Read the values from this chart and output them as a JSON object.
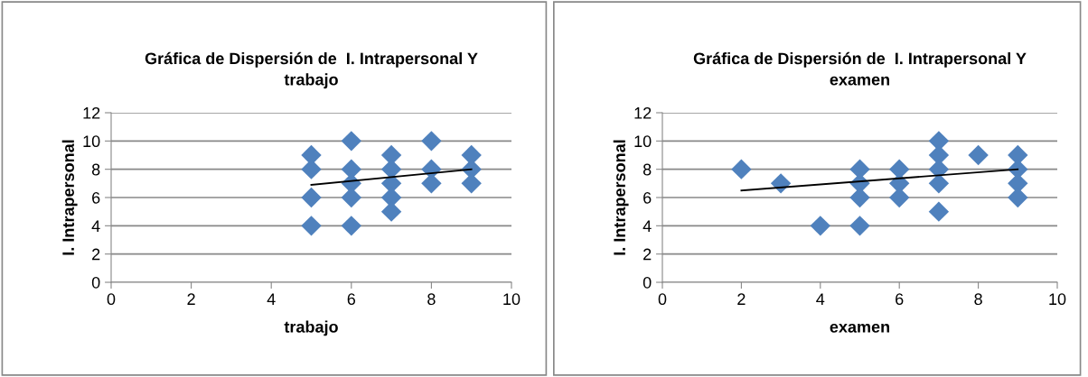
{
  "chart_data": [
    {
      "type": "scatter",
      "title": "Gráfica de Dispersión de  I. Intrapersonal Y\ntrabajo",
      "xlabel": "trabajo",
      "ylabel": "I. Intrapersonal",
      "xlim": [
        0,
        10
      ],
      "xticks": [
        0,
        2,
        4,
        6,
        8,
        10
      ],
      "ylim": [
        0,
        12
      ],
      "yticks": [
        0,
        2,
        4,
        6,
        8,
        10,
        12
      ],
      "grid": "y",
      "series": [
        {
          "marker": "diamond",
          "color": "#4f81bd",
          "x": [
            5,
            5,
            5,
            5,
            6,
            6,
            6,
            6,
            6,
            7,
            7,
            7,
            7,
            7,
            8,
            8,
            8,
            9,
            9,
            9
          ],
          "values": [
            9,
            8,
            6,
            4,
            10,
            8,
            7,
            6,
            4,
            9,
            8,
            7,
            6,
            5,
            10,
            8,
            7,
            9,
            8,
            7
          ]
        },
        {
          "type": "line",
          "color": "#000000",
          "x": [
            5,
            9
          ],
          "values": [
            6.9,
            8.0
          ]
        }
      ]
    },
    {
      "type": "scatter",
      "title": "Gráfica de Dispersión de  I. Intrapersonal Y\nexamen",
      "xlabel": "examen",
      "ylabel": "I. Intrapersonal",
      "xlim": [
        0,
        10
      ],
      "xticks": [
        0,
        2,
        4,
        6,
        8,
        10
      ],
      "ylim": [
        0,
        12
      ],
      "yticks": [
        0,
        2,
        4,
        6,
        8,
        10,
        12
      ],
      "grid": "y",
      "series": [
        {
          "marker": "diamond",
          "color": "#4f81bd",
          "x": [
            2,
            3,
            4,
            5,
            5,
            5,
            5,
            6,
            6,
            6,
            7,
            7,
            7,
            7,
            7,
            8,
            9,
            9,
            9,
            9
          ],
          "values": [
            8,
            7,
            4,
            8,
            7,
            6,
            4,
            8,
            7,
            6,
            10,
            9,
            8,
            7,
            5,
            9,
            9,
            8,
            7,
            6
          ]
        },
        {
          "type": "line",
          "color": "#000000",
          "x": [
            2,
            9
          ],
          "values": [
            6.5,
            8.0
          ]
        }
      ]
    }
  ]
}
